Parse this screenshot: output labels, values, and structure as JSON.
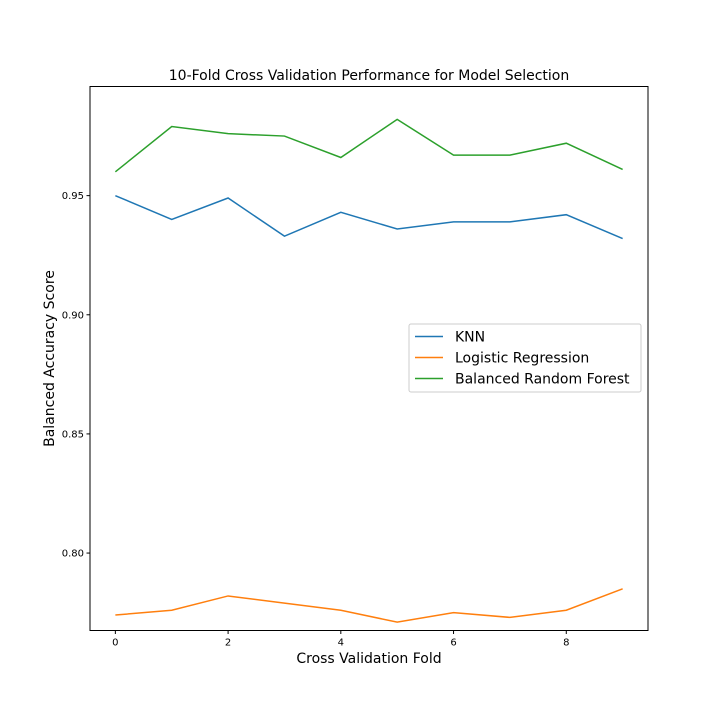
{
  "chart_data": {
    "type": "line",
    "title": "10-Fold Cross Validation Performance for Model Selection",
    "xlabel": "Cross Validation Fold",
    "ylabel": "Balanced Accuracy Score",
    "xlim": [
      -0.45,
      9.45
    ],
    "ylim": [
      0.7675,
      0.9958
    ],
    "xticks": [
      0,
      2,
      4,
      6,
      8
    ],
    "xtick_labels": [
      "0",
      "2",
      "4",
      "6",
      "8"
    ],
    "yticks": [
      0.8,
      0.85,
      0.9,
      0.95
    ],
    "ytick_labels": [
      "0.80",
      "0.85",
      "0.90",
      "0.95"
    ],
    "grid": false,
    "legend_position": "center-right",
    "x": [
      0,
      1,
      2,
      3,
      4,
      5,
      6,
      7,
      8,
      9
    ],
    "series": [
      {
        "name": "KNN",
        "color": "#1f77b4",
        "values": [
          0.95,
          0.94,
          0.949,
          0.933,
          0.943,
          0.936,
          0.939,
          0.939,
          0.942,
          0.932
        ]
      },
      {
        "name": "Logistic Regression",
        "color": "#ff7f0e",
        "values": [
          0.774,
          0.776,
          0.782,
          0.779,
          0.776,
          0.771,
          0.775,
          0.773,
          0.776,
          0.785
        ]
      },
      {
        "name": "Balanced Random Forest",
        "color": "#2ca02c",
        "values": [
          0.96,
          0.979,
          0.976,
          0.975,
          0.966,
          0.982,
          0.967,
          0.967,
          0.972,
          0.961
        ]
      }
    ]
  }
}
